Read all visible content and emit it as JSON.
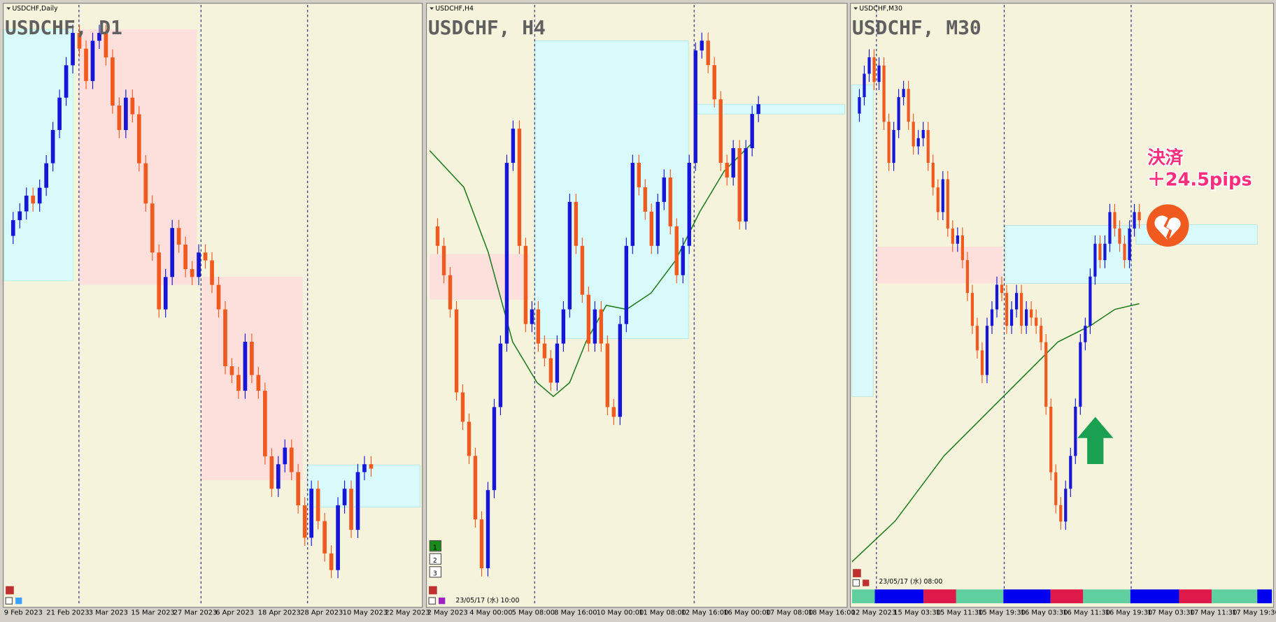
{
  "panels": [
    {
      "window_title": "USDCHF,Daily",
      "chart_label": "USDCHF, D1",
      "x_labels": [
        "9 Feb 2023",
        "21 Feb 2023",
        "3 Mar 2023",
        "15 Mar 2023",
        "27 Mar 2023",
        "6 Apr 2023",
        "18 Apr 2023",
        "28 Apr 2023",
        "10 May 2023",
        "22 May 2023"
      ],
      "ylim": [
        0.878,
        0.945
      ],
      "closes": [
        0.9199,
        0.9217,
        0.9227,
        0.9245,
        0.9236,
        0.9254,
        0.9282,
        0.932,
        0.9357,
        0.9394,
        0.9431,
        0.9413,
        0.9376,
        0.9422,
        0.9431,
        0.9403,
        0.9348,
        0.932,
        0.9357,
        0.9338,
        0.9282,
        0.9236,
        0.918,
        0.9115,
        0.9152,
        0.9208,
        0.9189,
        0.9161,
        0.9152,
        0.918,
        0.9171,
        0.9143,
        0.9115,
        0.905,
        0.904,
        0.9022,
        0.9078,
        0.904,
        0.9022,
        0.8947,
        0.891,
        0.8938,
        0.8957,
        0.8929,
        0.8891,
        0.8854,
        0.891,
        0.8873,
        0.8836,
        0.8817,
        0.8891,
        0.891,
        0.8863,
        0.8929,
        0.8938,
        0.8933
      ]
    },
    {
      "window_title": "USDCHF,H4",
      "chart_label": "USDCHF, H4",
      "timestamp": "23/05/17 (水) 10:00",
      "x_labels": [
        "2 May 2023",
        "4 May 00:00",
        "5 May 08:00",
        "8 May 16:00",
        "10 May 00:00",
        "11 May 08:00",
        "12 May 16:00",
        "16 May 00:00",
        "17 May 08:00",
        "18 May 16:00"
      ],
      "ylim": [
        0.887,
        0.899
      ],
      "closes": [
        0.8947,
        0.8943,
        0.8937,
        0.893,
        0.8913,
        0.8907,
        0.89,
        0.8887,
        0.8877,
        0.8893,
        0.891,
        0.8923,
        0.896,
        0.8967,
        0.8943,
        0.8927,
        0.893,
        0.8923,
        0.892,
        0.8915,
        0.8923,
        0.893,
        0.8952,
        0.8943,
        0.8933,
        0.8923,
        0.893,
        0.8923,
        0.891,
        0.8908,
        0.8927,
        0.8943,
        0.896,
        0.8955,
        0.895,
        0.8943,
        0.8952,
        0.8957,
        0.8947,
        0.8937,
        0.8943,
        0.896,
        0.8983,
        0.8985,
        0.898,
        0.8973,
        0.896,
        0.8957,
        0.8963,
        0.8948,
        0.8963,
        0.897,
        0.8972
      ]
    },
    {
      "window_title": "USDCHF,M30",
      "chart_label": "USDCHF, M30",
      "timestamp": "23/05/17 (水) 08:00",
      "x_labels": [
        "12 May 2023",
        "15 May 03:30",
        "15 May 11:30",
        "15 May 19:30",
        "16 May 03:30",
        "16 May 11:30",
        "16 May 19:30",
        "17 May 03:30",
        "17 May 11:30",
        "17 May 19:30"
      ],
      "ylim": [
        0.895,
        0.9
      ],
      "closes": [
        0.89917,
        0.89931,
        0.89951,
        0.89965,
        0.89944,
        0.89958,
        0.8991,
        0.89875,
        0.89903,
        0.89931,
        0.89938,
        0.8991,
        0.89889,
        0.89896,
        0.89903,
        0.89875,
        0.89854,
        0.89833,
        0.89861,
        0.89819,
        0.89806,
        0.89813,
        0.89792,
        0.89764,
        0.89736,
        0.89715,
        0.89694,
        0.89736,
        0.8975,
        0.89771,
        0.89764,
        0.89736,
        0.8975,
        0.89764,
        0.89736,
        0.8975,
        0.89743,
        0.89736,
        0.89722,
        0.89667,
        0.89611,
        0.89583,
        0.89569,
        0.89597,
        0.89625,
        0.89667,
        0.89722,
        0.89736,
        0.89778,
        0.89806,
        0.89792,
        0.89806,
        0.89833,
        0.89819,
        0.89806,
        0.89792,
        0.89819,
        0.89833,
        0.89826
      ]
    }
  ],
  "buttons": [
    "1",
    "2",
    "3"
  ],
  "annotation": [
    "決済",
    "＋24.5pips"
  ]
}
